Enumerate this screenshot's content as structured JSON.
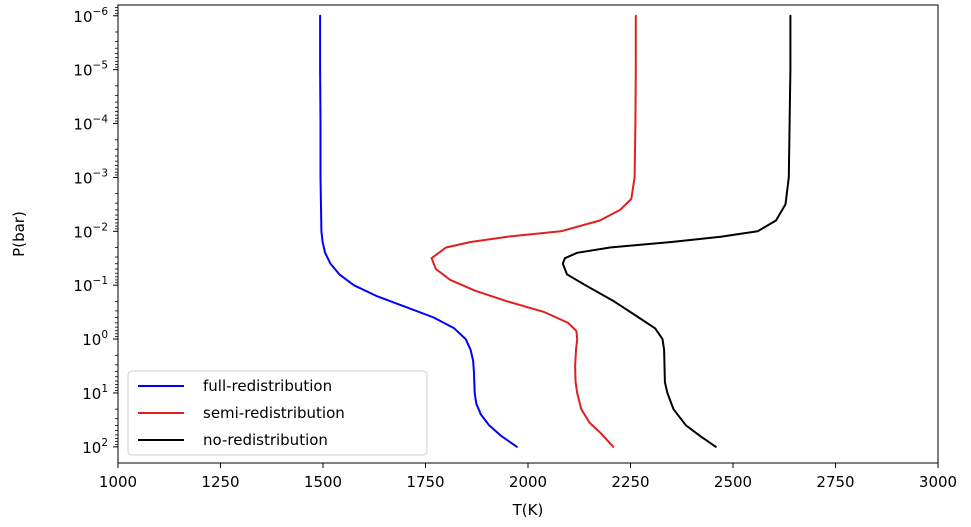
{
  "chart_data": {
    "type": "line",
    "title": "",
    "xlabel": "T(K)",
    "ylabel": "P(bar)",
    "xlim": [
      1000,
      3000
    ],
    "ylim_log10": [
      2.3,
      -6.2
    ],
    "y_scale": "log",
    "y_inverted": true,
    "grid": false,
    "legend_position": "lower-left",
    "x_ticks": [
      {
        "value": 1000,
        "label": "1000"
      },
      {
        "value": 1250,
        "label": "1250"
      },
      {
        "value": 1500,
        "label": "1500"
      },
      {
        "value": 1750,
        "label": "1750"
      },
      {
        "value": 2000,
        "label": "2000"
      },
      {
        "value": 2250,
        "label": "2250"
      },
      {
        "value": 2500,
        "label": "2500"
      },
      {
        "value": 2750,
        "label": "2750"
      },
      {
        "value": 3000,
        "label": "3000"
      }
    ],
    "y_ticks": [
      {
        "log": -6,
        "base": "10",
        "exp": "−6"
      },
      {
        "log": -5,
        "base": "10",
        "exp": "−5"
      },
      {
        "log": -4,
        "base": "10",
        "exp": "−4"
      },
      {
        "log": -3,
        "base": "10",
        "exp": "−3"
      },
      {
        "log": -2,
        "base": "10",
        "exp": "−2"
      },
      {
        "log": -1,
        "base": "10",
        "exp": "−1"
      },
      {
        "log": 0,
        "base": "10",
        "exp": "0"
      },
      {
        "log": 1,
        "base": "10",
        "exp": "1"
      },
      {
        "log": 2,
        "base": "10",
        "exp": "2"
      }
    ],
    "series": [
      {
        "name": "full-redistribution",
        "color": "#0000ff",
        "points": [
          [
            1493,
            1e-06
          ],
          [
            1493,
            1e-05
          ],
          [
            1494,
            0.0001
          ],
          [
            1494,
            0.001
          ],
          [
            1496,
            0.01
          ],
          [
            1499,
            0.0158
          ],
          [
            1505,
            0.0251
          ],
          [
            1518,
            0.0398
          ],
          [
            1540,
            0.0631
          ],
          [
            1575,
            0.1
          ],
          [
            1630,
            0.158
          ],
          [
            1700,
            0.251
          ],
          [
            1770,
            0.398
          ],
          [
            1820,
            0.631
          ],
          [
            1848,
            1.0
          ],
          [
            1860,
            1.58
          ],
          [
            1866,
            2.51
          ],
          [
            1868,
            3.98
          ],
          [
            1869,
            6.31
          ],
          [
            1870,
            10
          ],
          [
            1874,
            15.8
          ],
          [
            1885,
            25.1
          ],
          [
            1905,
            39.8
          ],
          [
            1935,
            63.1
          ],
          [
            1973,
            100
          ]
        ]
      },
      {
        "name": "semi-redistribution",
        "color": "#e02020",
        "points": [
          [
            2263,
            1e-06
          ],
          [
            2263,
            1e-05
          ],
          [
            2262,
            0.0001
          ],
          [
            2260,
            0.001
          ],
          [
            2252,
            0.00251
          ],
          [
            2225,
            0.00398
          ],
          [
            2175,
            0.00631
          ],
          [
            2080,
            0.01
          ],
          [
            1950,
            0.0126
          ],
          [
            1860,
            0.0158
          ],
          [
            1800,
            0.02
          ],
          [
            1765,
            0.0316
          ],
          [
            1775,
            0.0501
          ],
          [
            1810,
            0.0794
          ],
          [
            1870,
            0.126
          ],
          [
            1950,
            0.2
          ],
          [
            2040,
            0.316
          ],
          [
            2098,
            0.5
          ],
          [
            2118,
            0.708
          ],
          [
            2120,
            1.0
          ],
          [
            2117,
            1.58
          ],
          [
            2115,
            3.16
          ],
          [
            2116,
            6.31
          ],
          [
            2120,
            10
          ],
          [
            2130,
            20
          ],
          [
            2150,
            35.5
          ],
          [
            2178,
            56.2
          ],
          [
            2208,
            100
          ]
        ]
      },
      {
        "name": "no-redistribution",
        "color": "#000000",
        "points": [
          [
            2640,
            1e-06
          ],
          [
            2640,
            1e-05
          ],
          [
            2638,
            0.0001
          ],
          [
            2636,
            0.001
          ],
          [
            2628,
            0.00316
          ],
          [
            2605,
            0.00631
          ],
          [
            2560,
            0.01
          ],
          [
            2470,
            0.0126
          ],
          [
            2350,
            0.0158
          ],
          [
            2200,
            0.02
          ],
          [
            2120,
            0.0251
          ],
          [
            2090,
            0.0316
          ],
          [
            2085,
            0.0398
          ],
          [
            2095,
            0.0631
          ],
          [
            2140,
            0.1
          ],
          [
            2210,
            0.2
          ],
          [
            2270,
            0.398
          ],
          [
            2310,
            0.631
          ],
          [
            2328,
            1.0
          ],
          [
            2332,
            1.58
          ],
          [
            2333,
            3.16
          ],
          [
            2334,
            6.31
          ],
          [
            2340,
            10
          ],
          [
            2355,
            20
          ],
          [
            2385,
            39.8
          ],
          [
            2420,
            63.1
          ],
          [
            2458,
            100
          ]
        ]
      }
    ]
  }
}
